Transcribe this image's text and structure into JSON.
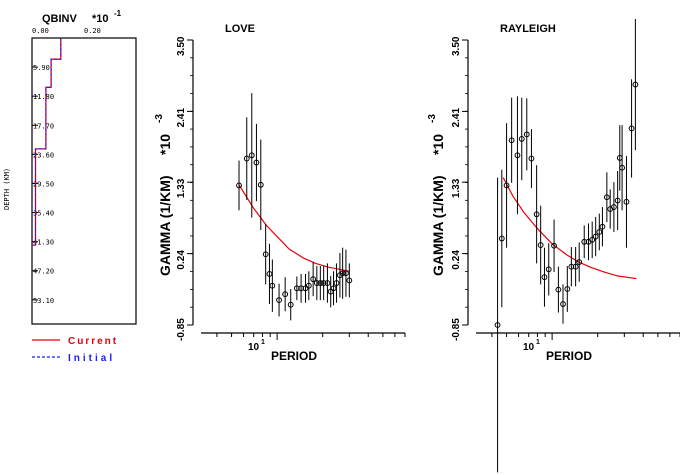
{
  "qbinv": {
    "title": "QBINV",
    "scale": "*10",
    "scale_exp": "-1",
    "x_ticks": [
      "0.00",
      "0.20"
    ],
    "depth_label": "DEPTH (KM)",
    "depth_ticks": [
      "5.90",
      "11.80",
      "17.70",
      "23.60",
      "29.50",
      "35.40",
      "41.30",
      "47.20",
      "53.10"
    ],
    "legend": [
      {
        "label": "Current",
        "color": "#e8000b"
      },
      {
        "label": "Initial",
        "color": "#1a1aff"
      }
    ]
  },
  "love_chart": {
    "title": "LOVE",
    "xlabel": "PERIOD",
    "ylabel": "GAMMA (1/KM)",
    "yscale": "*10",
    "yscale_exp": "-3",
    "y_ticks": [
      "3.50",
      "2.41",
      "1.33",
      "0.24",
      "-0.85"
    ],
    "x_tick_label": "10",
    "x_tick_exp": "1"
  },
  "rayleigh_chart": {
    "title": "RAYLEIGH",
    "xlabel": "PERIOD",
    "ylabel": "GAMMA (1/KM)",
    "yscale": "*10",
    "yscale_exp": "-3",
    "y_ticks": [
      "3.50",
      "2.41",
      "1.33",
      "0.24",
      "-0.85"
    ],
    "x_tick_label": "10",
    "x_tick_exp": "1"
  },
  "chart_data": [
    {
      "type": "line",
      "title": "QBINV",
      "xlabel": "",
      "ylabel": "DEPTH (KM)",
      "xlim": [
        0,
        0.3
      ],
      "ylim": [
        0,
        58
      ],
      "series": [
        {
          "name": "Current",
          "color": "#e8000b",
          "steps": [
            [
              0.083,
              0
            ],
            [
              0.083,
              4.3
            ],
            [
              0.055,
              4.3
            ],
            [
              0.055,
              10.0
            ],
            [
              0.04,
              10.0
            ],
            [
              0.04,
              22.5
            ],
            [
              0.01,
              22.5
            ],
            [
              0.01,
              42.0
            ],
            [
              0.0,
              42.0
            ]
          ]
        },
        {
          "name": "Initial",
          "color": "#1a1aff",
          "steps": [
            [
              0.083,
              0
            ],
            [
              0.083,
              4.3
            ],
            [
              0.055,
              4.3
            ],
            [
              0.055,
              10.0
            ],
            [
              0.04,
              10.0
            ],
            [
              0.04,
              22.5
            ],
            [
              0.01,
              22.5
            ],
            [
              0.01,
              42.0
            ],
            [
              0.0,
              42.0
            ]
          ]
        }
      ]
    },
    {
      "type": "scatter",
      "title": "LOVE",
      "xlabel": "PERIOD",
      "ylabel": "GAMMA (1/KM) *10^-3",
      "xscale": "log",
      "xlim": [
        3.14,
        70
      ],
      "ylim": [
        -0.85,
        3.5
      ],
      "points": [
        {
          "x": 5.6,
          "y": 1.28,
          "err": 0.38
        },
        {
          "x": 6.3,
          "y": 1.69,
          "err": 0.63
        },
        {
          "x": 6.8,
          "y": 1.74,
          "err": 0.95
        },
        {
          "x": 7.3,
          "y": 1.63,
          "err": 0.59
        },
        {
          "x": 7.8,
          "y": 1.29,
          "err": 0.69
        },
        {
          "x": 8.4,
          "y": 0.23,
          "err": 0.46
        },
        {
          "x": 8.9,
          "y": -0.07,
          "err": 0.46
        },
        {
          "x": 9.3,
          "y": -0.25,
          "err": 0.4
        },
        {
          "x": 10.3,
          "y": -0.47,
          "err": 0.25
        },
        {
          "x": 11.3,
          "y": -0.38,
          "err": 0.26
        },
        {
          "x": 12.3,
          "y": -0.54,
          "err": 0.24
        },
        {
          "x": 13.5,
          "y": -0.29,
          "err": 0.18
        },
        {
          "x": 14.4,
          "y": -0.29,
          "err": 0.22
        },
        {
          "x": 15.4,
          "y": -0.29,
          "err": 0.22
        },
        {
          "x": 16.2,
          "y": -0.25,
          "err": 0.22
        },
        {
          "x": 17.3,
          "y": -0.15,
          "err": 0.26
        },
        {
          "x": 18.3,
          "y": -0.21,
          "err": 0.26
        },
        {
          "x": 19.3,
          "y": -0.21,
          "err": 0.26
        },
        {
          "x": 20.3,
          "y": -0.21,
          "err": 0.26
        },
        {
          "x": 21.5,
          "y": -0.21,
          "err": 0.3
        },
        {
          "x": 22.6,
          "y": -0.34,
          "err": 0.24
        },
        {
          "x": 23.6,
          "y": -0.29,
          "err": 0.26
        },
        {
          "x": 24.7,
          "y": -0.21,
          "err": 0.3
        },
        {
          "x": 26.0,
          "y": -0.09,
          "err": 0.34
        },
        {
          "x": 27.1,
          "y": -0.06,
          "err": 0.39
        },
        {
          "x": 28.5,
          "y": -0.06,
          "err": 0.36
        },
        {
          "x": 30.0,
          "y": -0.17,
          "err": 0.26
        }
      ],
      "model": {
        "x": [
          5.6,
          7,
          8.5,
          10,
          12,
          15,
          18,
          22,
          26,
          30
        ],
        "y": [
          1.29,
          0.93,
          0.67,
          0.5,
          0.31,
          0.17,
          0.09,
          0.03,
          0.0,
          -0.03
        ]
      }
    },
    {
      "type": "scatter",
      "title": "RAYLEIGH",
      "xlabel": "PERIOD",
      "ylabel": "GAMMA (1/KM) *10^-3",
      "xscale": "log",
      "xlim": [
        3.14,
        70
      ],
      "ylim": [
        -0.85,
        3.5
      ],
      "points": [
        {
          "x": 4.36,
          "y": -0.85,
          "err": 2.25
        },
        {
          "x": 4.65,
          "y": 0.47,
          "err": 1.05
        },
        {
          "x": 5.0,
          "y": 1.28,
          "err": 0.95
        },
        {
          "x": 5.4,
          "y": 1.97,
          "err": 0.65
        },
        {
          "x": 5.9,
          "y": 1.74,
          "err": 0.9
        },
        {
          "x": 6.3,
          "y": 1.99,
          "err": 0.63
        },
        {
          "x": 6.8,
          "y": 2.06,
          "err": 0.55
        },
        {
          "x": 7.3,
          "y": 1.69,
          "err": 0.45
        },
        {
          "x": 7.9,
          "y": 0.84,
          "err": 0.75
        },
        {
          "x": 8.4,
          "y": 0.37,
          "err": 0.6
        },
        {
          "x": 8.9,
          "y": -0.12,
          "err": 0.45
        },
        {
          "x": 9.5,
          "y": 0.0,
          "err": 0.4
        },
        {
          "x": 10.3,
          "y": 0.36,
          "err": 0.4
        },
        {
          "x": 11.0,
          "y": -0.31,
          "err": 0.35
        },
        {
          "x": 11.8,
          "y": -0.53,
          "err": 0.3
        },
        {
          "x": 12.6,
          "y": -0.3,
          "err": 0.35
        },
        {
          "x": 13.4,
          "y": 0.04,
          "err": 0.3
        },
        {
          "x": 14.3,
          "y": 0.04,
          "err": 0.3
        },
        {
          "x": 15.1,
          "y": 0.11,
          "err": 0.3
        },
        {
          "x": 16.3,
          "y": 0.42,
          "err": 0.25
        },
        {
          "x": 17.4,
          "y": 0.42,
          "err": 0.28
        },
        {
          "x": 18.4,
          "y": 0.45,
          "err": 0.28
        },
        {
          "x": 19.4,
          "y": 0.5,
          "err": 0.3
        },
        {
          "x": 20.5,
          "y": 0.57,
          "err": 0.28
        },
        {
          "x": 21.5,
          "y": 0.65,
          "err": 0.3
        },
        {
          "x": 23.0,
          "y": 1.1,
          "err": 0.38
        },
        {
          "x": 24.2,
          "y": 0.92,
          "err": 0.3
        },
        {
          "x": 25.6,
          "y": 0.95,
          "err": 0.38
        },
        {
          "x": 27.1,
          "y": 1.05,
          "err": 0.45
        },
        {
          "x": 28.0,
          "y": 1.7,
          "err": 0.5
        },
        {
          "x": 29.0,
          "y": 1.55,
          "err": 0.65
        },
        {
          "x": 31.0,
          "y": 1.03,
          "err": 0.7
        },
        {
          "x": 33.5,
          "y": 2.15,
          "err": 0.75
        },
        {
          "x": 35.5,
          "y": 2.82,
          "err": 1.0
        }
      ],
      "model": {
        "x": [
          4.75,
          5.5,
          6.5,
          8,
          10,
          12.5,
          15,
          18,
          22,
          27,
          33,
          36
        ],
        "y": [
          1.4,
          1.12,
          0.87,
          0.62,
          0.39,
          0.22,
          0.11,
          0.03,
          -0.04,
          -0.1,
          -0.13,
          -0.14
        ]
      }
    }
  ]
}
